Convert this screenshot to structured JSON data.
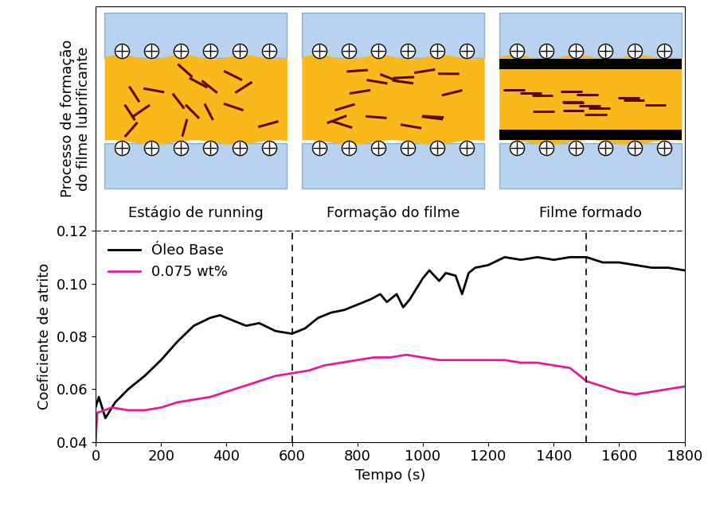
{
  "chart_data": {
    "type": "line",
    "xlabel": "Tempo (s)",
    "ylabel": "Coeficiente de atrito",
    "xlim": [
      0,
      1800
    ],
    "xticks": [
      0,
      200,
      400,
      600,
      800,
      1000,
      1200,
      1400,
      1600,
      1800
    ],
    "ylim": [
      0.04,
      0.12
    ],
    "yticks": [
      0.04,
      0.06,
      0.08,
      {
        "value": 0.1,
        "label": "0.10"
      },
      0.12
    ],
    "legend": "upper left",
    "grid": false,
    "stage_boundaries": [
      600,
      1500
    ],
    "series": [
      {
        "name": "Óleo Base",
        "color": "#000000",
        "x": [
          0,
          10,
          30,
          60,
          100,
          150,
          200,
          250,
          300,
          350,
          380,
          420,
          460,
          500,
          550,
          600,
          640,
          680,
          720,
          760,
          800,
          840,
          870,
          890,
          920,
          940,
          960,
          1000,
          1020,
          1050,
          1070,
          1100,
          1120,
          1140,
          1160,
          1200,
          1250,
          1300,
          1350,
          1400,
          1450,
          1500,
          1550,
          1600,
          1650,
          1700,
          1750,
          1800
        ],
        "values": [
          0.053,
          0.057,
          0.049,
          0.055,
          0.06,
          0.065,
          0.071,
          0.078,
          0.084,
          0.087,
          0.088,
          0.086,
          0.084,
          0.085,
          0.082,
          0.081,
          0.083,
          0.087,
          0.089,
          0.09,
          0.092,
          0.094,
          0.096,
          0.093,
          0.096,
          0.091,
          0.094,
          0.102,
          0.105,
          0.101,
          0.104,
          0.103,
          0.096,
          0.104,
          0.106,
          0.107,
          0.11,
          0.109,
          0.11,
          0.109,
          0.11,
          0.11,
          0.108,
          0.108,
          0.107,
          0.106,
          0.106,
          0.105
        ]
      },
      {
        "name": "0.075 wt%",
        "color": "#e6199b",
        "x": [
          0,
          5,
          50,
          100,
          150,
          200,
          250,
          300,
          350,
          400,
          450,
          500,
          550,
          600,
          650,
          700,
          750,
          800,
          850,
          900,
          950,
          1000,
          1050,
          1100,
          1150,
          1200,
          1250,
          1300,
          1350,
          1400,
          1450,
          1500,
          1550,
          1600,
          1650,
          1700,
          1750,
          1800
        ],
        "values": [
          0.04,
          0.051,
          0.053,
          0.052,
          0.052,
          0.053,
          0.055,
          0.056,
          0.057,
          0.059,
          0.061,
          0.063,
          0.065,
          0.066,
          0.067,
          0.069,
          0.07,
          0.071,
          0.072,
          0.072,
          0.073,
          0.072,
          0.071,
          0.071,
          0.071,
          0.071,
          0.071,
          0.07,
          0.07,
          0.069,
          0.068,
          0.063,
          0.061,
          0.059,
          0.058,
          0.059,
          0.06,
          0.061
        ]
      }
    ]
  },
  "schematic": {
    "ylabel": "Processo de formação\ndo filme lubrificante",
    "panels": [
      "Estágio de running",
      "Formação do filme",
      "Filme formado"
    ]
  }
}
